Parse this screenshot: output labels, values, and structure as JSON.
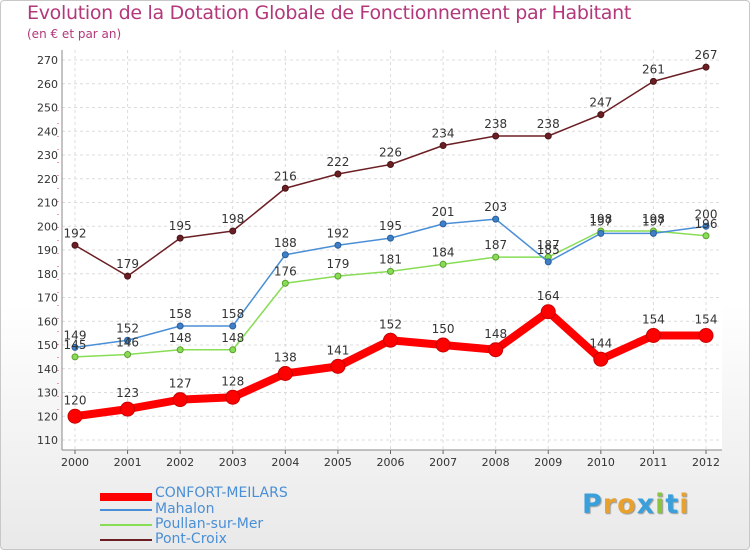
{
  "chart_data": {
    "type": "line",
    "title": "Evolution de la Dotation Globale de Fonctionnement par Habitant",
    "subtitle": "(en € et par an)",
    "xlabel": "",
    "ylabel": "",
    "ylim": [
      110,
      270
    ],
    "yticks": [
      110,
      120,
      130,
      140,
      150,
      160,
      170,
      180,
      190,
      200,
      210,
      220,
      230,
      240,
      250,
      260,
      270
    ],
    "x": [
      "2000",
      "2001",
      "2002",
      "2003",
      "2004",
      "2005",
      "2006",
      "2007",
      "2008",
      "2009",
      "2010",
      "2011",
      "2012"
    ],
    "grid": true,
    "legend_position": "bottom-left",
    "series": [
      {
        "name": "CONFORT-MEILARS",
        "color": "#ff0000",
        "values": [
          120,
          123,
          127,
          128,
          138,
          141,
          152,
          150,
          148,
          164,
          144,
          154,
          154
        ]
      },
      {
        "name": "Mahalon",
        "color": "#4a8fd6",
        "values": [
          149,
          152,
          158,
          158,
          188,
          192,
          195,
          201,
          203,
          185,
          197,
          197,
          200
        ]
      },
      {
        "name": "Poullan-sur-Mer",
        "color": "#88dd55",
        "values": [
          145,
          146,
          148,
          148,
          176,
          179,
          181,
          184,
          187,
          187,
          198,
          198,
          196
        ]
      },
      {
        "name": "Pont-Croix",
        "color": "#6b1f24",
        "values": [
          192,
          179,
          195,
          198,
          216,
          222,
          226,
          234,
          238,
          238,
          247,
          261,
          267
        ]
      }
    ]
  },
  "logo": {
    "letters": [
      "P",
      "r",
      "o",
      "x",
      "i",
      "t",
      "i"
    ],
    "colors": [
      "#3aa0dc",
      "#e8a12c",
      "#e8a12c",
      "#3aa0dc",
      "#8ac43f",
      "#3aa0dc",
      "#e8a12c"
    ]
  }
}
